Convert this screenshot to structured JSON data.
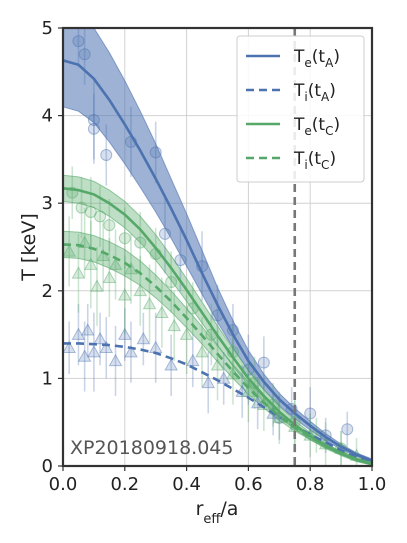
{
  "chart_data": {
    "type": "line",
    "xlabel": "r_eff/a",
    "ylabel": "T [keV]",
    "xlim": [
      0.0,
      1.0
    ],
    "ylim": [
      0,
      5
    ],
    "xticks": [
      "0.0",
      "0.2",
      "0.4",
      "0.6",
      "0.8",
      "1.0"
    ],
    "yticks": [
      "0",
      "1",
      "2",
      "3",
      "4",
      "5"
    ],
    "grid": true,
    "legend_position": "top-right",
    "annotation": "XP20180918.045",
    "vline": {
      "x": 0.75,
      "style": "dashed",
      "color": "#777777"
    },
    "colors": {
      "A": "#4c72b0",
      "C": "#55a868"
    },
    "series": [
      {
        "name": "T_e(t_A)",
        "legend": {
          "main": "T",
          "sub1": "e",
          "mid": "(t",
          "sub2": "A",
          "end": ")"
        },
        "color": "#4c72b0",
        "dash": "solid",
        "x": [
          0.0,
          0.05,
          0.1,
          0.15,
          0.2,
          0.25,
          0.3,
          0.35,
          0.4,
          0.45,
          0.5,
          0.55,
          0.6,
          0.65,
          0.7,
          0.75,
          0.8,
          0.85,
          0.9,
          0.95,
          1.0
        ],
        "y": [
          4.63,
          4.58,
          4.42,
          4.18,
          3.9,
          3.6,
          3.28,
          2.94,
          2.58,
          2.2,
          1.84,
          1.5,
          1.2,
          0.96,
          0.76,
          0.6,
          0.46,
          0.33,
          0.22,
          0.13,
          0.06
        ],
        "band_lower": [
          4.1,
          4.05,
          3.92,
          3.7,
          3.45,
          3.18,
          2.9,
          2.6,
          2.28,
          1.96,
          1.64,
          1.35,
          1.09,
          0.87,
          0.69,
          0.54,
          0.41,
          0.29,
          0.19,
          0.11,
          0.04
        ],
        "band_upper": [
          5.2,
          5.15,
          5.0,
          4.72,
          4.4,
          4.05,
          3.68,
          3.28,
          2.88,
          2.46,
          2.04,
          1.66,
          1.32,
          1.05,
          0.83,
          0.66,
          0.51,
          0.37,
          0.25,
          0.15,
          0.08
        ]
      },
      {
        "name": "T_i(t_A)",
        "legend": {
          "main": "T",
          "sub1": "i",
          "mid": "(t",
          "sub2": "A",
          "end": ")"
        },
        "color": "#4c72b0",
        "dash": "dashed",
        "x": [
          0.0,
          0.05,
          0.1,
          0.15,
          0.2,
          0.25,
          0.3,
          0.35,
          0.4,
          0.45,
          0.5,
          0.55,
          0.6,
          0.65,
          0.7,
          0.75,
          0.8,
          0.85,
          0.9,
          0.95,
          1.0
        ],
        "y": [
          1.4,
          1.4,
          1.39,
          1.38,
          1.36,
          1.33,
          1.29,
          1.23,
          1.16,
          1.07,
          0.98,
          0.88,
          0.78,
          0.67,
          0.56,
          0.46,
          0.36,
          0.27,
          0.18,
          0.1,
          0.04
        ]
      },
      {
        "name": "T_e(t_C)",
        "legend": {
          "main": "T",
          "sub1": "e",
          "mid": "(t",
          "sub2": "C",
          "end": ")"
        },
        "color": "#55a868",
        "dash": "solid",
        "x": [
          0.0,
          0.05,
          0.1,
          0.15,
          0.2,
          0.25,
          0.3,
          0.35,
          0.4,
          0.45,
          0.5,
          0.55,
          0.6,
          0.65,
          0.7,
          0.75,
          0.8,
          0.85,
          0.9,
          0.95,
          1.0
        ],
        "y": [
          3.17,
          3.15,
          3.1,
          3.0,
          2.87,
          2.7,
          2.49,
          2.26,
          2.01,
          1.75,
          1.49,
          1.24,
          1.0,
          0.8,
          0.62,
          0.47,
          0.34,
          0.23,
          0.14,
          0.07,
          0.02
        ],
        "band_lower": [
          3.02,
          3.0,
          2.95,
          2.85,
          2.72,
          2.55,
          2.35,
          2.12,
          1.88,
          1.63,
          1.38,
          1.14,
          0.92,
          0.73,
          0.56,
          0.42,
          0.3,
          0.2,
          0.12,
          0.05,
          0.01
        ],
        "band_upper": [
          3.32,
          3.3,
          3.25,
          3.15,
          3.02,
          2.85,
          2.64,
          2.4,
          2.14,
          1.87,
          1.6,
          1.34,
          1.09,
          0.87,
          0.68,
          0.52,
          0.38,
          0.26,
          0.16,
          0.09,
          0.04
        ]
      },
      {
        "name": "T_i(t_C)",
        "legend": {
          "main": "T",
          "sub1": "i",
          "mid": "(t",
          "sub2": "C",
          "end": ")"
        },
        "color": "#55a868",
        "dash": "dashed",
        "x": [
          0.0,
          0.05,
          0.1,
          0.15,
          0.2,
          0.25,
          0.3,
          0.35,
          0.4,
          0.45,
          0.5,
          0.55,
          0.6,
          0.65,
          0.7,
          0.75,
          0.8,
          0.85,
          0.9,
          0.95,
          1.0
        ],
        "y": [
          2.53,
          2.52,
          2.48,
          2.41,
          2.32,
          2.2,
          2.05,
          1.88,
          1.69,
          1.49,
          1.28,
          1.08,
          0.89,
          0.72,
          0.57,
          0.44,
          0.33,
          0.23,
          0.15,
          0.08,
          0.03
        ],
        "band_lower": [
          2.38,
          2.37,
          2.33,
          2.26,
          2.17,
          2.06,
          1.92,
          1.76,
          1.58,
          1.39,
          1.19,
          1.0,
          0.82,
          0.66,
          0.52,
          0.4,
          0.3,
          0.21,
          0.13,
          0.07,
          0.02
        ],
        "band_upper": [
          2.68,
          2.67,
          2.63,
          2.56,
          2.47,
          2.34,
          2.18,
          2.0,
          1.8,
          1.59,
          1.37,
          1.16,
          0.96,
          0.78,
          0.62,
          0.48,
          0.36,
          0.25,
          0.17,
          0.09,
          0.04
        ]
      }
    ],
    "scatter": [
      {
        "series": "T_e(t_A) data",
        "marker": "circle",
        "color": "#4c72b0",
        "points": [
          [
            0.05,
            4.85,
            0.3
          ],
          [
            0.07,
            4.7,
            0.35
          ],
          [
            0.1,
            3.95,
            0.45
          ],
          [
            0.1,
            3.85,
            0.4
          ],
          [
            0.14,
            3.55,
            0.35
          ],
          [
            0.22,
            3.7,
            0.4
          ],
          [
            0.3,
            3.58,
            0.35
          ],
          [
            0.33,
            2.65,
            0.45
          ],
          [
            0.38,
            2.35,
            0.35
          ],
          [
            0.45,
            2.28,
            0.4
          ],
          [
            0.5,
            1.72,
            0.35
          ],
          [
            0.55,
            1.55,
            0.3
          ],
          [
            0.6,
            1.1,
            0.4
          ],
          [
            0.65,
            1.18,
            0.3
          ],
          [
            0.7,
            0.55,
            0.25
          ],
          [
            0.74,
            0.65,
            0.25
          ],
          [
            0.8,
            0.6,
            0.3
          ],
          [
            0.85,
            0.35,
            0.2
          ],
          [
            0.92,
            0.42,
            0.2
          ]
        ]
      },
      {
        "series": "T_i(t_A) data",
        "marker": "triangle",
        "color": "#4c72b0",
        "points": [
          [
            0.02,
            1.35,
            0.3
          ],
          [
            0.05,
            1.5,
            0.35
          ],
          [
            0.07,
            1.25,
            0.4
          ],
          [
            0.08,
            1.55,
            0.3
          ],
          [
            0.1,
            1.3,
            0.45
          ],
          [
            0.12,
            1.45,
            0.3
          ],
          [
            0.14,
            1.35,
            0.35
          ],
          [
            0.17,
            1.2,
            0.4
          ],
          [
            0.2,
            1.5,
            0.3
          ],
          [
            0.22,
            1.3,
            0.35
          ],
          [
            0.26,
            1.45,
            0.3
          ],
          [
            0.3,
            1.35,
            0.4
          ],
          [
            0.35,
            1.15,
            0.35
          ],
          [
            0.42,
            1.2,
            0.3
          ],
          [
            0.47,
            0.95,
            0.35
          ],
          [
            0.52,
            1.0,
            0.3
          ],
          [
            0.58,
            0.85,
            0.3
          ],
          [
            0.63,
            0.72,
            0.3
          ],
          [
            0.68,
            0.6,
            0.25
          ]
        ]
      },
      {
        "series": "T_e(t_C) data",
        "marker": "circle",
        "color": "#55a868",
        "points": [
          [
            0.03,
            3.12,
            0.3
          ],
          [
            0.06,
            2.95,
            0.35
          ],
          [
            0.09,
            2.9,
            0.4
          ],
          [
            0.12,
            2.85,
            0.35
          ],
          [
            0.15,
            2.75,
            0.3
          ],
          [
            0.2,
            2.6,
            0.35
          ],
          [
            0.25,
            2.55,
            0.35
          ],
          [
            0.3,
            2.42,
            0.3
          ],
          [
            0.35,
            2.1,
            0.35
          ],
          [
            0.42,
            1.8,
            0.3
          ],
          [
            0.48,
            1.5,
            0.35
          ],
          [
            0.55,
            1.3,
            0.3
          ],
          [
            0.62,
            0.95,
            0.3
          ],
          [
            0.68,
            0.7,
            0.25
          ],
          [
            0.75,
            0.5,
            0.25
          ],
          [
            0.82,
            0.35,
            0.2
          ],
          [
            0.9,
            0.2,
            0.2
          ]
        ]
      },
      {
        "series": "T_i(t_C) data",
        "marker": "triangle",
        "color": "#55a868",
        "points": [
          [
            0.02,
            2.45,
            0.4
          ],
          [
            0.05,
            2.2,
            0.45
          ],
          [
            0.07,
            2.55,
            0.4
          ],
          [
            0.09,
            2.3,
            0.5
          ],
          [
            0.11,
            2.05,
            0.45
          ],
          [
            0.13,
            2.4,
            0.4
          ],
          [
            0.15,
            2.15,
            0.45
          ],
          [
            0.17,
            2.3,
            0.4
          ],
          [
            0.2,
            1.95,
            0.45
          ],
          [
            0.22,
            2.25,
            0.4
          ],
          [
            0.25,
            2.0,
            0.4
          ],
          [
            0.28,
            1.85,
            0.45
          ],
          [
            0.32,
            1.75,
            0.4
          ],
          [
            0.36,
            1.6,
            0.4
          ],
          [
            0.4,
            1.5,
            0.45
          ],
          [
            0.45,
            1.3,
            0.4
          ],
          [
            0.5,
            1.15,
            0.4
          ],
          [
            0.55,
            1.05,
            0.35
          ],
          [
            0.6,
            0.85,
            0.35
          ],
          [
            0.65,
            0.7,
            0.3
          ],
          [
            0.7,
            0.55,
            0.3
          ],
          [
            0.75,
            0.45,
            0.3
          ],
          [
            0.8,
            0.35,
            0.25
          ],
          [
            0.85,
            0.25,
            0.25
          ],
          [
            0.9,
            0.2,
            0.2
          ],
          [
            0.95,
            0.12,
            0.2
          ]
        ]
      }
    ]
  }
}
